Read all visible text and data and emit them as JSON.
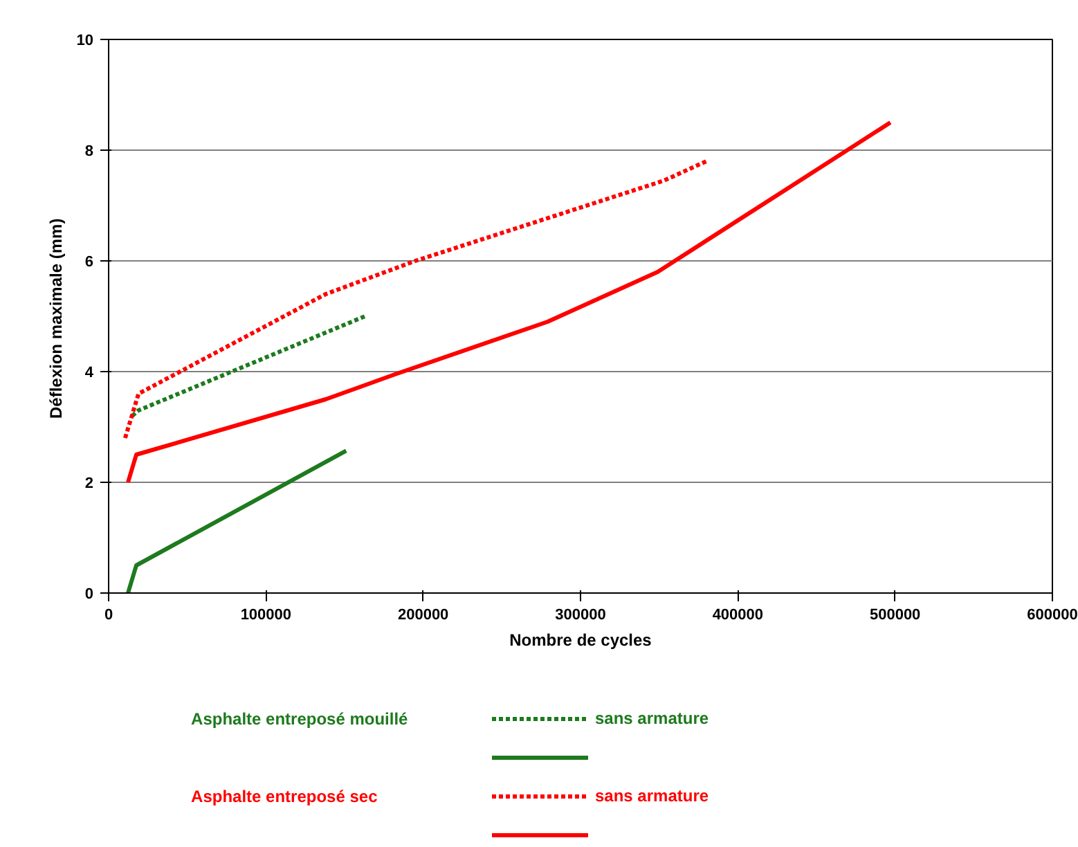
{
  "chart_data": {
    "type": "line",
    "xlabel": "Nombre de cycles",
    "ylabel": "Déflexion maximale  (mm)",
    "xlim": [
      0,
      600000
    ],
    "xticks": [
      0,
      100000,
      200000,
      300000,
      400000,
      500000,
      600000
    ],
    "ylim": [
      0,
      10
    ],
    "yticks": [
      0,
      2,
      4,
      6,
      8,
      10
    ],
    "grid": "y",
    "legend": "bottom",
    "annotations": [
      "Asphalte entreposé mouillé",
      "Asphalte entreposé sec"
    ],
    "series": [
      {
        "name": "sans armature",
        "color": "#1e7a1e",
        "line_style": "dotted",
        "x": [
          15000,
          19000,
          163000
        ],
        "values": [
          3.2,
          3.3,
          5.0
        ]
      },
      {
        "color": "#1e7a1e",
        "line_style": "solid",
        "x": [
          12300,
          17600,
          151000
        ],
        "values": [
          0,
          0.5,
          2.57
        ]
      },
      {
        "name": "sans armature",
        "color": "#ff0000",
        "line_style": "dotted",
        "x": [
          10500,
          19000,
          138000,
          195000,
          353000,
          380000
        ],
        "values": [
          2.8,
          3.6,
          5.4,
          6.0,
          7.45,
          7.8
        ]
      },
      {
        "color": "#ff0000",
        "line_style": "solid",
        "x": [
          12300,
          17600,
          138000,
          182000,
          279000,
          349000,
          497000
        ],
        "values": [
          2.0,
          2.5,
          3.5,
          3.95,
          4.9,
          5.8,
          8.5
        ]
      }
    ]
  }
}
